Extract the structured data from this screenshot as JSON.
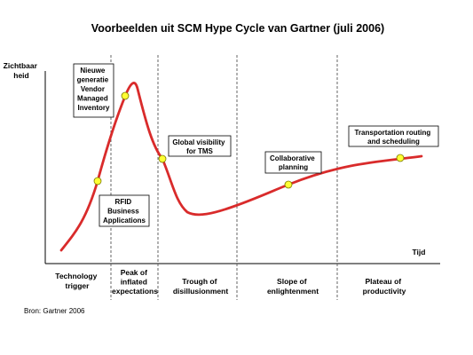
{
  "title": "Voorbeelden uit SCM Hype Cycle van Gartner (juli 2006)",
  "y_axis_label": [
    "Zichtbaar",
    "heid"
  ],
  "x_axis_label": "Tijd",
  "source": "Bron: Gartner 2006",
  "phases": [
    {
      "lines": [
        "Technology",
        "trigger"
      ]
    },
    {
      "lines": [
        "Peak of",
        "inflated",
        "expectations"
      ]
    },
    {
      "lines": [
        "Trough of",
        "disillusionment"
      ]
    },
    {
      "lines": [
        "Slope of",
        "enlightenment"
      ]
    },
    {
      "lines": [
        "Plateau of",
        "productivity"
      ]
    }
  ],
  "technologies": [
    {
      "lines": [
        "Nieuwe",
        "generatie",
        "Vendor",
        "Managed",
        "Inventory"
      ]
    },
    {
      "lines": [
        "RFID",
        "Business",
        "Applications"
      ]
    },
    {
      "lines": [
        "Global visibility",
        "for TMS"
      ]
    },
    {
      "lines": [
        "Collaborative",
        "planning"
      ]
    },
    {
      "lines": [
        "Transportation routing",
        "and scheduling"
      ]
    }
  ],
  "colors": {
    "curve": "#d92b2b",
    "marker": "#ffff33",
    "marker_stroke": "#7a7a00",
    "axis": "#000000",
    "divider": "#555555"
  }
}
